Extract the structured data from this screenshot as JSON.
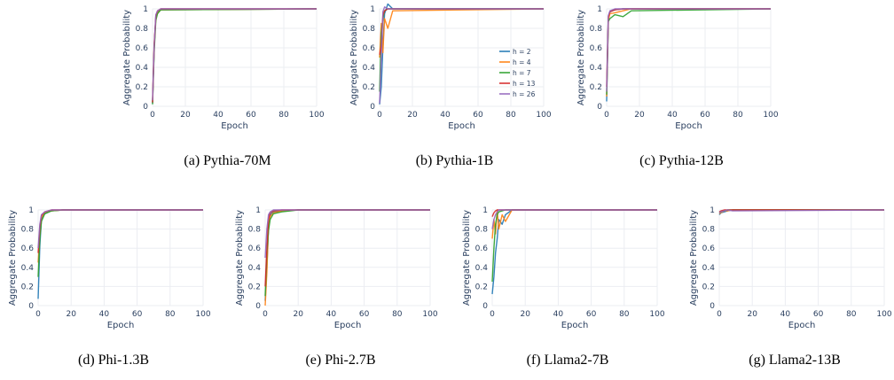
{
  "colors": {
    "h2": "#1f77b4",
    "h4": "#ff7f0e",
    "h7": "#2ca02c",
    "h13": "#d62728",
    "h26": "#9467bd",
    "grid": "#ebedf2",
    "axis_text": "#2a3f5f"
  },
  "chart_data": [
    {
      "type": "line",
      "caption": "(a) Pythia-70M",
      "xlabel": "Epoch",
      "ylabel": "Aggregate Probability",
      "xlim": [
        0,
        100
      ],
      "ylim": [
        0,
        1
      ],
      "x_ticks": [
        "0",
        "20",
        "40",
        "60",
        "80",
        "100"
      ],
      "y_ticks": [
        "0",
        "0.2",
        "0.4",
        "0.6",
        "0.8",
        "1"
      ],
      "grid": true,
      "legend": false,
      "series": [
        {
          "name": "h = 2",
          "x": [
            0,
            1,
            2,
            3,
            5,
            100
          ],
          "y": [
            0.03,
            0.6,
            0.92,
            0.97,
            0.99,
            1.0
          ]
        },
        {
          "name": "h = 4",
          "x": [
            0,
            1,
            2,
            3,
            5,
            100
          ],
          "y": [
            0.05,
            0.65,
            0.9,
            0.96,
            0.99,
            1.0
          ]
        },
        {
          "name": "h = 7",
          "x": [
            0,
            1,
            2,
            3,
            5,
            100
          ],
          "y": [
            0.02,
            0.55,
            0.88,
            0.95,
            0.99,
            1.0
          ]
        },
        {
          "name": "h = 13",
          "x": [
            0,
            1,
            2,
            3,
            5,
            100
          ],
          "y": [
            0.04,
            0.6,
            0.93,
            0.98,
            1.0,
            1.0
          ]
        },
        {
          "name": "h = 26",
          "x": [
            0,
            1,
            2,
            3,
            5,
            100
          ],
          "y": [
            0.06,
            0.62,
            0.94,
            0.98,
            1.0,
            1.0
          ]
        }
      ]
    },
    {
      "type": "line",
      "caption": "(b) Pythia-1B",
      "xlabel": "Epoch",
      "ylabel": "Aggregate Probability",
      "xlim": [
        0,
        100
      ],
      "ylim": [
        0,
        1
      ],
      "x_ticks": [
        "0",
        "20",
        "40",
        "60",
        "80",
        "100"
      ],
      "y_ticks": [
        "0",
        "0.2",
        "0.4",
        "0.6",
        "0.8",
        "1"
      ],
      "grid": true,
      "legend": true,
      "legend_position": "right",
      "series": [
        {
          "name": "h = 2",
          "x": [
            0,
            1,
            2,
            3,
            5,
            8,
            100
          ],
          "y": [
            0.02,
            0.2,
            0.6,
            0.95,
            1.05,
            1.0,
            1.0
          ]
        },
        {
          "name": "h = 4",
          "x": [
            0,
            1,
            2,
            3,
            5,
            8,
            100
          ],
          "y": [
            0.5,
            0.85,
            0.55,
            0.9,
            0.8,
            0.98,
            1.0
          ]
        },
        {
          "name": "h = 7",
          "x": [
            0,
            1,
            2,
            3,
            5,
            8,
            100
          ],
          "y": [
            0.15,
            0.75,
            0.9,
            0.98,
            1.0,
            1.0,
            1.0
          ]
        },
        {
          "name": "h = 13",
          "x": [
            0,
            1,
            2,
            3,
            5,
            8,
            100
          ],
          "y": [
            0.53,
            0.62,
            0.93,
            0.98,
            1.0,
            1.0,
            1.0
          ]
        },
        {
          "name": "h = 26",
          "x": [
            0,
            1,
            2,
            3,
            5,
            8,
            100
          ],
          "y": [
            0.03,
            0.5,
            0.97,
            1.02,
            1.0,
            1.0,
            1.0
          ]
        }
      ]
    },
    {
      "type": "line",
      "caption": "(c) Pythia-12B",
      "xlabel": "Epoch",
      "ylabel": "Aggregate Probability",
      "xlim": [
        0,
        100
      ],
      "ylim": [
        0,
        1
      ],
      "x_ticks": [
        "0",
        "20",
        "40",
        "60",
        "80",
        "100"
      ],
      "y_ticks": [
        "0",
        "0.2",
        "0.4",
        "0.6",
        "0.8",
        "1"
      ],
      "grid": true,
      "legend": false,
      "series": [
        {
          "name": "h = 2",
          "x": [
            0,
            1,
            2,
            5,
            10,
            15,
            100
          ],
          "y": [
            0.05,
            0.9,
            0.97,
            0.99,
            1.0,
            1.0,
            1.0
          ]
        },
        {
          "name": "h = 4",
          "x": [
            0,
            1,
            2,
            5,
            10,
            15,
            100
          ],
          "y": [
            0.1,
            0.88,
            0.95,
            0.96,
            0.98,
            1.0,
            1.0
          ]
        },
        {
          "name": "h = 7",
          "x": [
            0,
            1,
            2,
            5,
            10,
            15,
            100
          ],
          "y": [
            0.12,
            0.87,
            0.9,
            0.94,
            0.92,
            0.98,
            1.0
          ]
        },
        {
          "name": "h = 13",
          "x": [
            0,
            1,
            2,
            5,
            10,
            15,
            100
          ],
          "y": [
            0.2,
            0.92,
            0.97,
            0.99,
            1.0,
            1.0,
            1.0
          ]
        },
        {
          "name": "h = 26",
          "x": [
            0,
            1,
            2,
            5,
            10,
            15,
            100
          ],
          "y": [
            0.15,
            0.93,
            0.98,
            1.0,
            1.0,
            1.0,
            1.0
          ]
        }
      ]
    },
    {
      "type": "line",
      "caption": "(d) Phi-1.3B",
      "xlabel": "Epoch",
      "ylabel": "Aggregate Probability",
      "xlim": [
        0,
        100
      ],
      "ylim": [
        0,
        1
      ],
      "x_ticks": [
        "0",
        "20",
        "40",
        "60",
        "80",
        "100"
      ],
      "y_ticks": [
        "0",
        "0.2",
        "0.4",
        "0.6",
        "0.8",
        "1"
      ],
      "grid": true,
      "legend": false,
      "series": [
        {
          "name": "h = 2",
          "x": [
            0,
            1,
            2,
            4,
            8,
            15,
            100
          ],
          "y": [
            0.07,
            0.62,
            0.9,
            0.96,
            0.99,
            1.0,
            1.0
          ]
        },
        {
          "name": "h = 4",
          "x": [
            0,
            1,
            2,
            4,
            8,
            15,
            100
          ],
          "y": [
            0.45,
            0.75,
            0.92,
            0.97,
            0.99,
            1.0,
            1.0
          ]
        },
        {
          "name": "h = 7",
          "x": [
            0,
            1,
            2,
            4,
            8,
            15,
            100
          ],
          "y": [
            0.3,
            0.7,
            0.88,
            0.96,
            0.99,
            1.0,
            1.0
          ]
        },
        {
          "name": "h = 13",
          "x": [
            0,
            1,
            2,
            4,
            8,
            15,
            100
          ],
          "y": [
            0.55,
            0.82,
            0.94,
            0.98,
            1.0,
            1.0,
            1.0
          ]
        },
        {
          "name": "h = 26",
          "x": [
            0,
            1,
            2,
            4,
            8,
            15,
            100
          ],
          "y": [
            0.6,
            0.85,
            0.95,
            0.98,
            1.0,
            1.0,
            1.0
          ]
        }
      ]
    },
    {
      "type": "line",
      "caption": "(e) Phi-2.7B",
      "xlabel": "Epoch",
      "ylabel": "Aggregate Probability",
      "xlim": [
        0,
        100
      ],
      "ylim": [
        0,
        1
      ],
      "x_ticks": [
        "0",
        "20",
        "40",
        "60",
        "80",
        "100"
      ],
      "y_ticks": [
        "0",
        "0.2",
        "0.4",
        "0.6",
        "0.8",
        "1"
      ],
      "grid": true,
      "legend": false,
      "series": [
        {
          "name": "h = 2",
          "x": [
            0,
            1,
            2,
            3,
            5,
            10,
            20,
            100
          ],
          "y": [
            0.05,
            0.4,
            0.8,
            0.95,
            0.98,
            0.99,
            1.0,
            1.0
          ]
        },
        {
          "name": "h = 4",
          "x": [
            0,
            1,
            2,
            3,
            5,
            10,
            20,
            100
          ],
          "y": [
            0.0,
            0.35,
            0.82,
            0.93,
            0.97,
            0.99,
            1.0,
            1.0
          ]
        },
        {
          "name": "h = 7",
          "x": [
            0,
            1,
            2,
            3,
            5,
            10,
            20,
            100
          ],
          "y": [
            0.1,
            0.55,
            0.78,
            0.9,
            0.96,
            0.98,
            1.0,
            1.0
          ]
        },
        {
          "name": "h = 13",
          "x": [
            0,
            1,
            2,
            3,
            5,
            10,
            20,
            100
          ],
          "y": [
            0.2,
            0.6,
            0.9,
            0.97,
            0.99,
            1.0,
            1.0,
            1.0
          ]
        },
        {
          "name": "h = 26",
          "x": [
            0,
            1,
            2,
            3,
            5,
            10,
            20,
            100
          ],
          "y": [
            0.5,
            0.8,
            0.95,
            0.98,
            1.0,
            1.0,
            1.0,
            1.0
          ]
        }
      ]
    },
    {
      "type": "line",
      "caption": "(f) Llama2-7B",
      "xlabel": "Epoch",
      "ylabel": "Aggregate Probability",
      "xlim": [
        0,
        100
      ],
      "ylim": [
        0,
        1
      ],
      "x_ticks": [
        "0",
        "20",
        "40",
        "60",
        "80",
        "100"
      ],
      "y_ticks": [
        "0",
        "0.2",
        "0.4",
        "0.6",
        "0.8",
        "1"
      ],
      "grid": true,
      "legend": false,
      "series": [
        {
          "name": "h = 2",
          "x": [
            0,
            1,
            2,
            3,
            4,
            6,
            8,
            12,
            100
          ],
          "y": [
            0.12,
            0.3,
            0.55,
            0.7,
            0.9,
            0.85,
            0.95,
            1.0,
            1.0
          ]
        },
        {
          "name": "h = 4",
          "x": [
            0,
            1,
            2,
            3,
            4,
            6,
            8,
            12,
            100
          ],
          "y": [
            0.7,
            0.9,
            0.75,
            1.0,
            0.8,
            0.95,
            0.88,
            1.0,
            1.0
          ]
        },
        {
          "name": "h = 7",
          "x": [
            0,
            1,
            2,
            3,
            4,
            6,
            8,
            12,
            100
          ],
          "y": [
            0.25,
            0.6,
            0.85,
            0.95,
            0.98,
            0.99,
            1.0,
            1.0,
            1.0
          ]
        },
        {
          "name": "h = 13",
          "x": [
            0,
            1,
            2,
            3,
            4,
            6,
            8,
            12,
            100
          ],
          "y": [
            0.93,
            0.97,
            0.99,
            1.0,
            1.0,
            1.0,
            1.0,
            1.0,
            1.0
          ]
        },
        {
          "name": "h = 26",
          "x": [
            0,
            1,
            2,
            3,
            4,
            6,
            8,
            12,
            100
          ],
          "y": [
            0.8,
            0.9,
            0.95,
            0.98,
            1.0,
            1.0,
            1.0,
            1.0,
            1.0
          ]
        }
      ]
    },
    {
      "type": "line",
      "caption": "(g) Llama2-13B",
      "xlabel": "Epoch",
      "ylabel": "Aggregate Probability",
      "xlim": [
        0,
        100
      ],
      "ylim": [
        0,
        1
      ],
      "x_ticks": [
        "0",
        "20",
        "40",
        "60",
        "80",
        "100"
      ],
      "y_ticks": [
        "0",
        "0.2",
        "0.4",
        "0.6",
        "0.8",
        "1"
      ],
      "grid": true,
      "legend": false,
      "series": [
        {
          "name": "h = 2",
          "x": [
            0,
            1,
            3,
            5,
            8,
            100
          ],
          "y": [
            0.95,
            0.97,
            0.98,
            0.99,
            1.0,
            1.0
          ]
        },
        {
          "name": "h = 4",
          "x": [
            0,
            1,
            3,
            5,
            8,
            100
          ],
          "y": [
            0.96,
            0.97,
            0.99,
            0.99,
            1.0,
            1.0
          ]
        },
        {
          "name": "h = 7",
          "x": [
            0,
            1,
            3,
            5,
            8,
            100
          ],
          "y": [
            0.97,
            0.98,
            0.99,
            1.0,
            1.0,
            1.0
          ]
        },
        {
          "name": "h = 13",
          "x": [
            0,
            1,
            3,
            5,
            8,
            100
          ],
          "y": [
            0.98,
            0.99,
            1.0,
            1.0,
            1.0,
            1.0
          ]
        },
        {
          "name": "h = 26",
          "x": [
            0,
            1,
            3,
            5,
            8,
            100
          ],
          "y": [
            0.97,
            0.98,
            0.99,
            1.0,
            0.99,
            1.0
          ]
        }
      ]
    }
  ]
}
